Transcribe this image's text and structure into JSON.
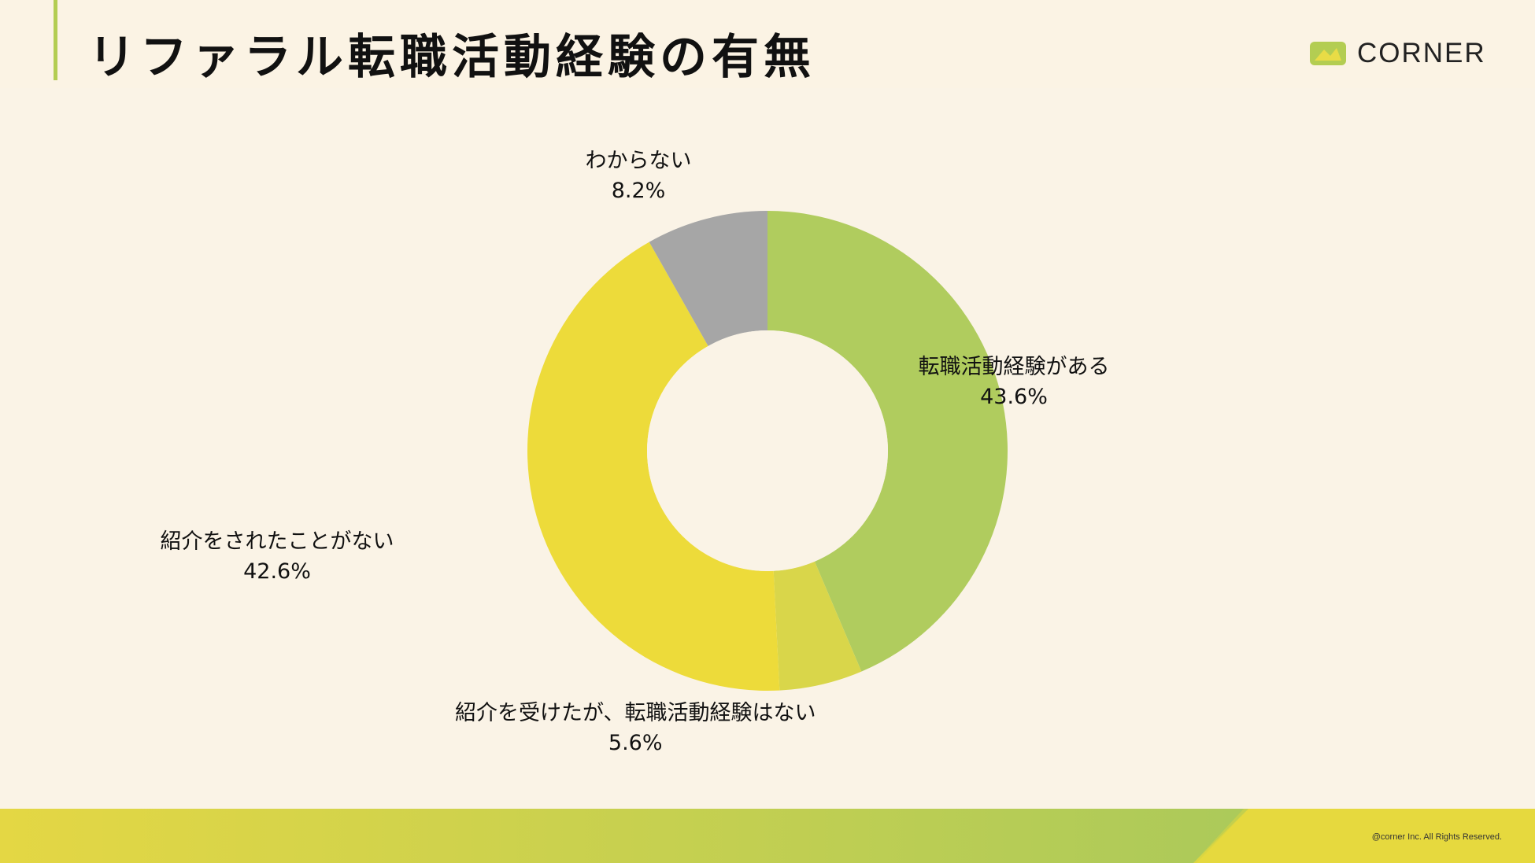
{
  "page": {
    "title": "リファラル転職活動経験の有無",
    "logo_text": "CORNER",
    "copyright": "@corner Inc. All Rights Reserved."
  },
  "colors": {
    "background": "#faf3e6",
    "accent": "#b3cd52",
    "footer_start": "#e4d744",
    "footer_end": "#a9c95b"
  },
  "chart_data": {
    "type": "pie",
    "donut": true,
    "start_angle_deg": 0,
    "direction": "clockwise",
    "slices": [
      {
        "label": "転職活動経験がある",
        "value": 43.6,
        "display": "43.6%",
        "color": "#b0cc5e"
      },
      {
        "label": "紹介を受けたが、転職活動経験はない",
        "value": 5.6,
        "display": "5.6%",
        "color": "#d9d64a"
      },
      {
        "label": "紹介をされたことがない",
        "value": 42.6,
        "display": "42.6%",
        "color": "#eddb3a"
      },
      {
        "label": "わからない",
        "value": 8.2,
        "display": "8.2%",
        "color": "#a6a6a6"
      }
    ]
  }
}
